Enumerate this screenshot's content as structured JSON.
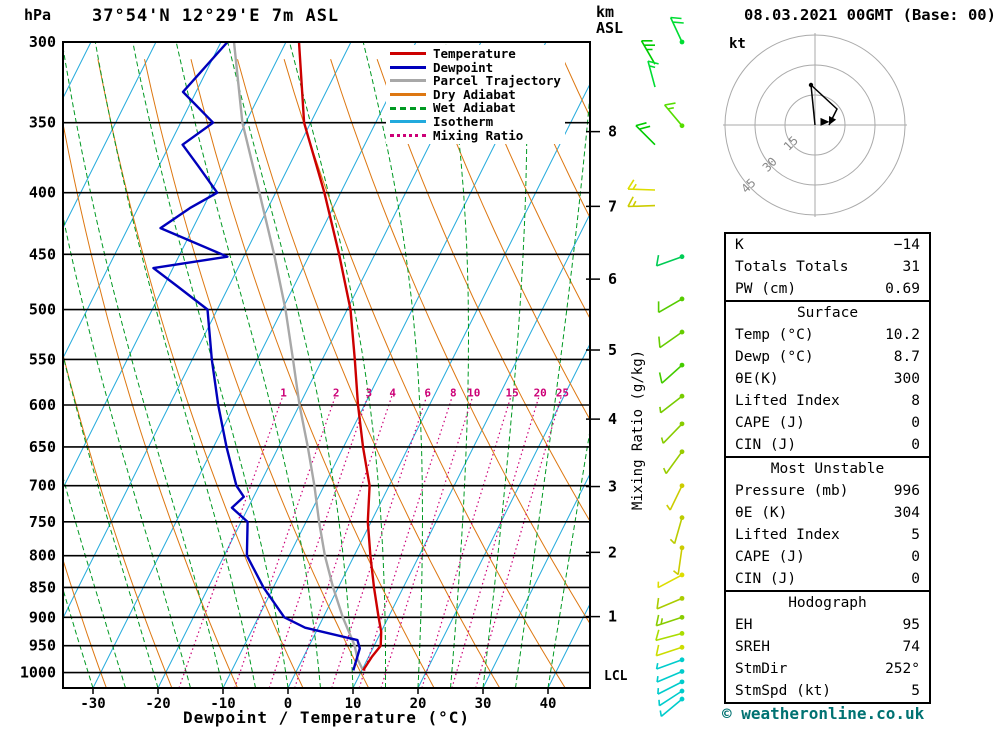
{
  "header": {
    "station_title": "37°54'N 12°29'E 7m ASL",
    "datetime_title": "08.03.2021 00GMT (Base: 00)",
    "pressure_unit_label": "hPa",
    "altitude_unit_top": "km",
    "altitude_unit_bottom": "ASL"
  },
  "axes": {
    "pressure_ticks": [
      300,
      350,
      400,
      450,
      500,
      550,
      600,
      650,
      700,
      750,
      800,
      850,
      900,
      950,
      1000
    ],
    "temp_ticks": [
      -30,
      -20,
      -10,
      0,
      10,
      20,
      30,
      40
    ],
    "x_axis_label": "Dewpoint / Temperature (°C)",
    "km_ticks": [
      1,
      2,
      3,
      4,
      5,
      6,
      7,
      8
    ],
    "lcl_label": "LCL",
    "mixing_ratio_axis_label": "Mixing Ratio (g/kg)",
    "mixing_ratio_values": [
      1,
      2,
      3,
      4,
      6,
      8,
      10,
      15,
      20,
      25
    ]
  },
  "legend": [
    {
      "label": "Temperature",
      "color": "#cc0000",
      "style": "solid"
    },
    {
      "label": "Dewpoint",
      "color": "#0000bb",
      "style": "solid"
    },
    {
      "label": "Parcel Trajectory",
      "color": "#a8a8a8",
      "style": "solid"
    },
    {
      "label": "Dry Adiabat",
      "color": "#dd7711",
      "style": "solid"
    },
    {
      "label": "Wet Adiabat",
      "color": "#009922",
      "style": "dashed"
    },
    {
      "label": "Isotherm",
      "color": "#22aadd",
      "style": "solid"
    },
    {
      "label": "Mixing Ratio",
      "color": "#cc0077",
      "style": "dotted"
    }
  ],
  "hodograph": {
    "unit_label": "kt",
    "ring_labels_kt": [
      15,
      30,
      45
    ]
  },
  "table": {
    "sections": [
      {
        "header": "",
        "rows": [
          [
            "K",
            "−14"
          ],
          [
            "Totals Totals",
            "31"
          ],
          [
            "PW (cm)",
            "0.69"
          ]
        ]
      },
      {
        "header": "Surface",
        "rows": [
          [
            "Temp (°C)",
            "10.2"
          ],
          [
            "Dewp (°C)",
            "8.7"
          ],
          [
            "θE(K)",
            "300"
          ],
          [
            "Lifted Index",
            "8"
          ],
          [
            "CAPE (J)",
            "0"
          ],
          [
            "CIN (J)",
            "0"
          ]
        ]
      },
      {
        "header": "Most Unstable",
        "rows": [
          [
            "Pressure (mb)",
            "996"
          ],
          [
            "θE (K)",
            "304"
          ],
          [
            "Lifted Index",
            "5"
          ],
          [
            "CAPE (J)",
            "0"
          ],
          [
            "CIN (J)",
            "0"
          ]
        ]
      },
      {
        "header": "Hodograph",
        "rows": [
          [
            "EH",
            "95"
          ],
          [
            "SREH",
            "74"
          ],
          [
            "StmDir",
            "252°"
          ],
          [
            "StmSpd (kt)",
            "5"
          ]
        ]
      }
    ]
  },
  "footer": {
    "copyright": "© weatheronline.co.uk"
  },
  "chart_data": {
    "type": "skewt_logp_sounding",
    "pressure_axis_hpa": [
      300,
      1030
    ],
    "temperature_axis_c": [
      -40,
      45
    ],
    "skew_deg_note": "isotherms skewed right with height",
    "temperature_profile_p_t": [
      [
        300,
        -48
      ],
      [
        350,
        -41
      ],
      [
        400,
        -32.5
      ],
      [
        450,
        -25.5
      ],
      [
        500,
        -19.5
      ],
      [
        550,
        -15
      ],
      [
        600,
        -11
      ],
      [
        650,
        -7
      ],
      [
        700,
        -3
      ],
      [
        750,
        -0.5
      ],
      [
        800,
        2.5
      ],
      [
        850,
        5.5
      ],
      [
        900,
        8.5
      ],
      [
        925,
        10
      ],
      [
        950,
        11
      ],
      [
        970,
        10.5
      ],
      [
        996,
        10.2
      ]
    ],
    "dewpoint_profile_p_t": [
      [
        300,
        -59
      ],
      [
        330,
        -62
      ],
      [
        350,
        -55
      ],
      [
        365,
        -58
      ],
      [
        380,
        -54
      ],
      [
        400,
        -49
      ],
      [
        412,
        -52
      ],
      [
        428,
        -55
      ],
      [
        452,
        -42.5
      ],
      [
        462,
        -53
      ],
      [
        478,
        -48
      ],
      [
        500,
        -41.5
      ],
      [
        550,
        -37
      ],
      [
        600,
        -32.5
      ],
      [
        650,
        -28
      ],
      [
        700,
        -23.5
      ],
      [
        715,
        -21.5
      ],
      [
        730,
        -22.5
      ],
      [
        750,
        -19
      ],
      [
        800,
        -16.5
      ],
      [
        850,
        -11.5
      ],
      [
        900,
        -6
      ],
      [
        918,
        -2
      ],
      [
        940,
        7
      ],
      [
        955,
        8
      ],
      [
        996,
        8.7
      ]
    ],
    "parcel_profile_p_t": [
      [
        300,
        -58
      ],
      [
        350,
        -50.5
      ],
      [
        400,
        -42.5
      ],
      [
        450,
        -35.5
      ],
      [
        500,
        -29.5
      ],
      [
        550,
        -24.5
      ],
      [
        600,
        -20
      ],
      [
        650,
        -15.5
      ],
      [
        700,
        -11.5
      ],
      [
        750,
        -8
      ],
      [
        800,
        -4.5
      ],
      [
        850,
        -0.8
      ],
      [
        900,
        3
      ],
      [
        950,
        7
      ],
      [
        975,
        8.5
      ],
      [
        996,
        10.2
      ]
    ],
    "winds_p_dir_spd_color_xoffset": [
      [
        300,
        335,
        20,
        "#00dd33",
        0
      ],
      [
        313,
        330,
        25,
        "#00cc00",
        -27
      ],
      [
        327,
        345,
        15,
        "#00dd33",
        -27
      ],
      [
        352,
        320,
        15,
        "#55dd00",
        0
      ],
      [
        365,
        315,
        20,
        "#00cc00",
        -27
      ],
      [
        398,
        272,
        18,
        "#dddd00",
        -27
      ],
      [
        410,
        268,
        18,
        "#cccc00",
        -27
      ],
      [
        452,
        250,
        12,
        "#00cc55",
        0
      ],
      [
        490,
        240,
        10,
        "#55cc00",
        0
      ],
      [
        522,
        235,
        10,
        "#66cc00",
        0
      ],
      [
        556,
        228,
        10,
        "#44cc00",
        0
      ],
      [
        590,
        232,
        8,
        "#77cc00",
        0
      ],
      [
        622,
        224,
        6,
        "#88cc00",
        0
      ],
      [
        656,
        216,
        5,
        "#99cc00",
        0
      ],
      [
        700,
        206,
        5,
        "#cccc00",
        0
      ],
      [
        744,
        196,
        5,
        "#bbcc00",
        0
      ],
      [
        788,
        188,
        5,
        "#cccc00",
        0
      ],
      [
        830,
        242,
        5,
        "#dddd00",
        0
      ],
      [
        868,
        247,
        10,
        "#aacc00",
        0
      ],
      [
        900,
        252,
        15,
        "#88cc00",
        0
      ],
      [
        928,
        255,
        12,
        "#aadd00",
        0
      ],
      [
        953,
        252,
        10,
        "#ccdd00",
        0
      ],
      [
        976,
        250,
        8,
        "#00cccc",
        0
      ],
      [
        998,
        247,
        7,
        "#00cccc",
        0
      ],
      [
        1018,
        243,
        6,
        "#00cccc",
        0
      ],
      [
        1036,
        237,
        5,
        "#00cccc",
        0
      ],
      [
        1052,
        230,
        5,
        "#00cccc",
        0
      ]
    ],
    "hodograph_trace_uv_kt": [
      [
        0,
        0
      ],
      [
        -2,
        20
      ],
      [
        11,
        8
      ],
      [
        7,
        0
      ]
    ],
    "storm_motion": {
      "dir_deg": 252,
      "speed_kt": 5
    },
    "colors": {
      "temperature": "#cc0000",
      "dewpoint": "#0000bb",
      "parcel": "#a8a8a8",
      "dry_adiabat": "#dd7711",
      "wet_adiabat": "#009922",
      "isotherm": "#22aadd",
      "mixing_ratio": "#cc0077",
      "isobar": "#000000",
      "hodograph_grid": "#aaaaaa"
    }
  }
}
